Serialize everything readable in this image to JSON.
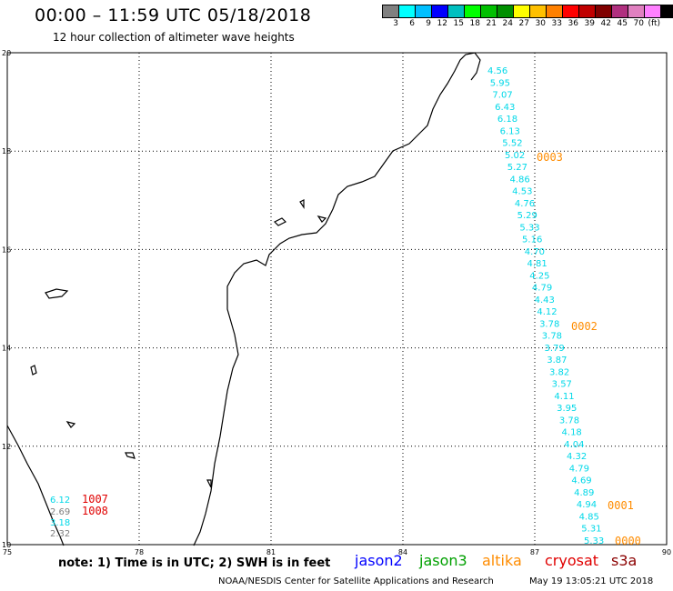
{
  "header": {
    "title": "00:00 – 11:59 UTC 05/18/2018",
    "subtitle": "12 hour collection of altimeter wave heights"
  },
  "color_scale": {
    "colors": [
      "#808080",
      "#00ffff",
      "#00bfff",
      "#0000ff",
      "#00bfbf",
      "#00ff00",
      "#00c000",
      "#009000",
      "#ffff00",
      "#ffc000",
      "#ff8000",
      "#ff0000",
      "#c00000",
      "#800000",
      "#b0307f",
      "#e080c0",
      "#ff80ff",
      "#000000"
    ],
    "labels": [
      "3",
      "6",
      "9",
      "12",
      "15",
      "18",
      "21",
      "24",
      "27",
      "30",
      "33",
      "36",
      "39",
      "42",
      "45",
      "70",
      "(ft)"
    ]
  },
  "axes": {
    "lon_labels": [
      "75",
      "78",
      "81",
      "84",
      "87",
      "90"
    ],
    "lat_labels": [
      "20",
      "18",
      "16",
      "14",
      "12",
      "10"
    ]
  },
  "tracks": [
    {
      "color": "#00d8e8",
      "values": [
        "4.56",
        "5.95",
        "7.07",
        "6.43",
        "6.18",
        "6.13",
        "5.52",
        "5.02",
        "5.27",
        "4.86",
        "4.53",
        "4.76",
        "5.29",
        "5.33",
        "5.16",
        "4.70",
        "4.81",
        "4.25",
        "4.79",
        "4.43",
        "4.12",
        "3.78",
        "3.78",
        "3.79",
        "3.87",
        "3.82",
        "3.57",
        "4.11",
        "3.95",
        "3.78",
        "4.18",
        "4.04",
        "4.32",
        "4.79",
        "4.69",
        "4.89",
        "4.94",
        "4.85",
        "5.31",
        "5.33"
      ]
    },
    {
      "color": "#00d8e8",
      "values": [
        "6.12"
      ]
    },
    {
      "color": "#808080",
      "values": [
        "2.69"
      ]
    },
    {
      "color": "#00d8e8",
      "values": [
        "3.18"
      ]
    },
    {
      "color": "#808080",
      "values": [
        "2.32"
      ]
    }
  ],
  "pass_labels": [
    {
      "text": "0003",
      "color": "#ff8c00"
    },
    {
      "text": "0002",
      "color": "#ff8c00"
    },
    {
      "text": "0001",
      "color": "#ff8c00"
    },
    {
      "text": "0000",
      "color": "#ff8c00"
    },
    {
      "text": "1007",
      "color": "#e00000"
    },
    {
      "text": "1008",
      "color": "#e00000"
    }
  ],
  "footer": {
    "note": "note: 1) Time is in UTC; 2) SWH is in feet",
    "legend": [
      {
        "text": "jason2",
        "color": "#0000ff"
      },
      {
        "text": "jason3",
        "color": "#00a000"
      },
      {
        "text": "altika",
        "color": "#ff8c00"
      },
      {
        "text": "cryosat",
        "color": "#e00000"
      },
      {
        "text": "s3a",
        "color": "#8b0000"
      }
    ],
    "credit": "NOAA/NESDIS Center for Satellite Applications and Research",
    "timestamp": "May 19 13:05:21 UTC 2018"
  }
}
